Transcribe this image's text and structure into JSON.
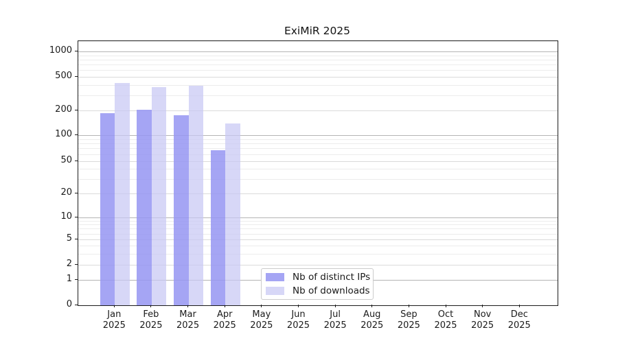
{
  "chart_data": {
    "type": "bar",
    "title": "ExiMiR 2025",
    "categories": [
      "Jan 2025",
      "Feb 2025",
      "Mar 2025",
      "Apr 2025",
      "May 2025",
      "Jun 2025",
      "Jul 2025",
      "Aug 2025",
      "Sep 2025",
      "Oct 2025",
      "Nov 2025",
      "Dec 2025"
    ],
    "series": [
      {
        "name": "Nb of distinct IPs",
        "color": "#9595f2",
        "fill_alpha": 0.85,
        "values": [
          185,
          205,
          176,
          67,
          0,
          0,
          0,
          0,
          0,
          0,
          0,
          0
        ]
      },
      {
        "name": "Nb of downloads",
        "color": "#c8c8f4",
        "fill_alpha": 0.72,
        "values": [
          420,
          378,
          386,
          140,
          0,
          0,
          0,
          0,
          0,
          0,
          0,
          0
        ]
      }
    ],
    "xlabel": "",
    "ylabel": "",
    "y_ticks": [
      0,
      1,
      2,
      5,
      10,
      20,
      50,
      100,
      200,
      500,
      1000
    ],
    "y_scale": "symlog",
    "ylim": [
      0,
      1300
    ],
    "grid": "horizontal",
    "legend_position": "lower-center"
  }
}
